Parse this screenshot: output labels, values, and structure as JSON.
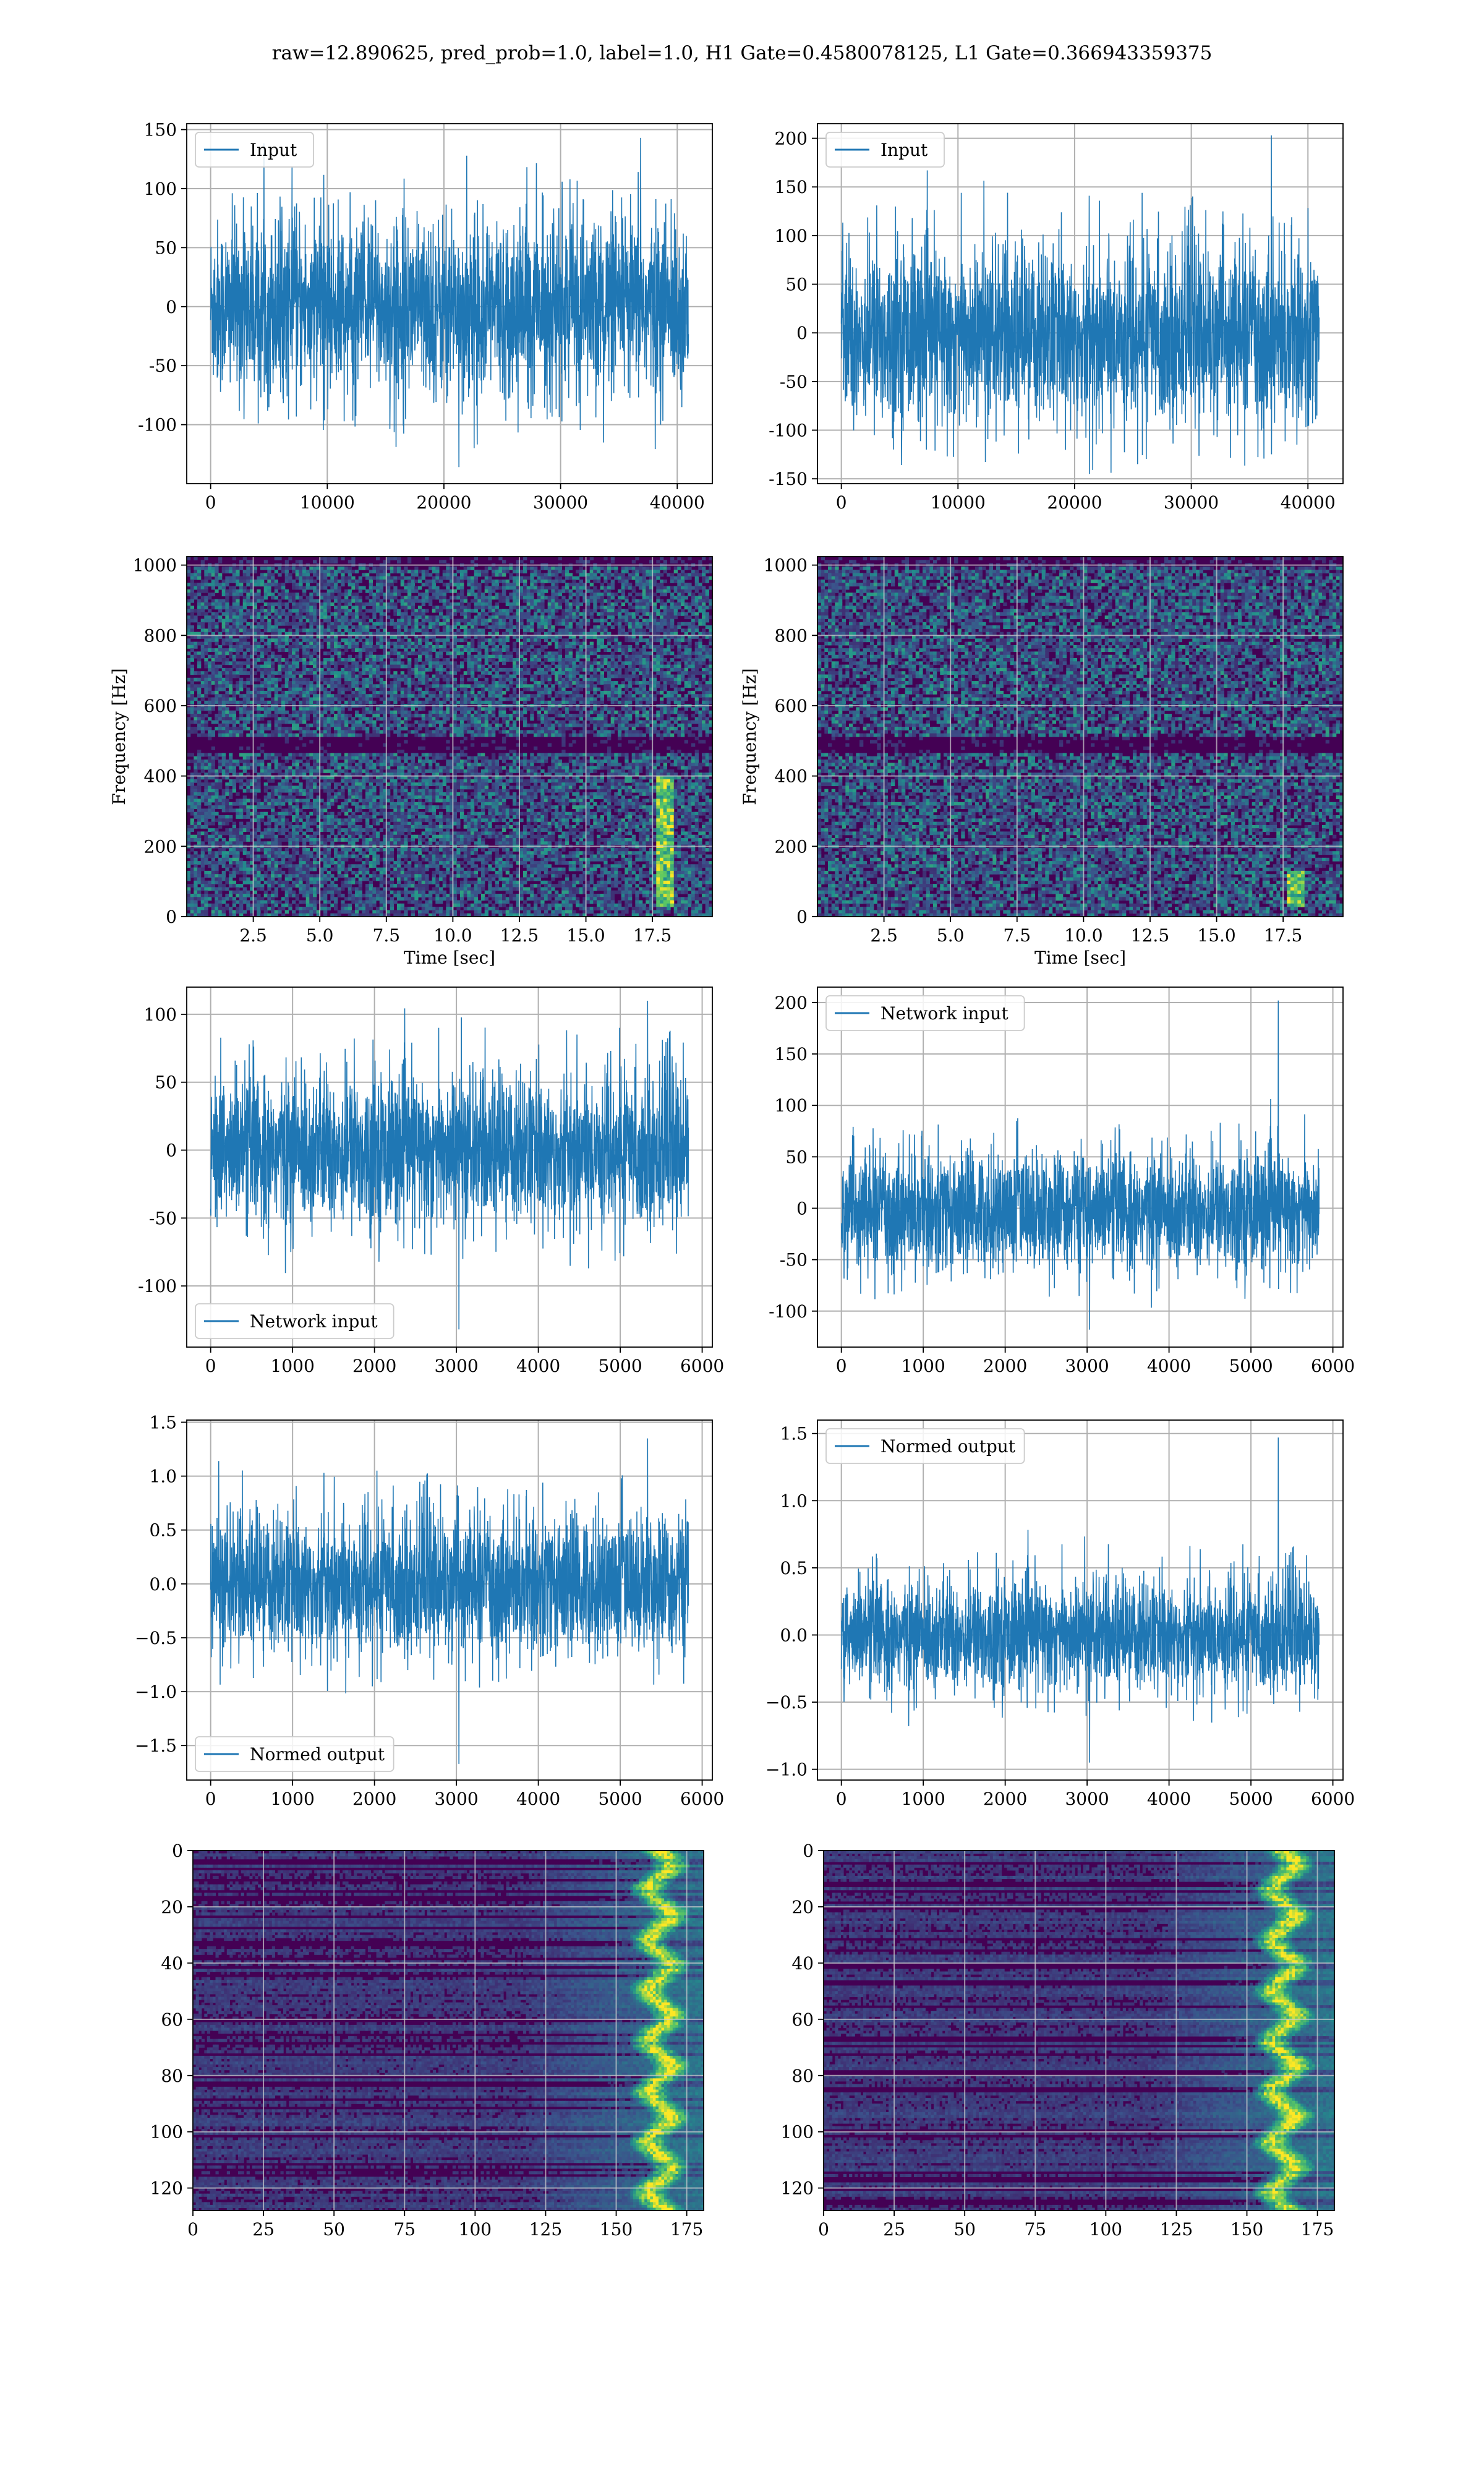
{
  "suptitle": "raw=12.890625, pred_prob=1.0, label=1.0, H1 Gate=0.4580078125, L1 Gate=0.366943359375",
  "colors": {
    "series": "#1f77b4",
    "grid": "#b0b0b0",
    "viridis_low": "#440154",
    "viridis_high": "#fde725"
  },
  "chart_data": [
    {
      "id": "h1-input",
      "type": "line",
      "row": 0,
      "col": 0,
      "legend": [
        "Input"
      ],
      "legend_loc": "upper left",
      "xlim": [
        -2048,
        43008
      ],
      "ylim": [
        -150,
        155
      ],
      "xticks": [
        0,
        10000,
        20000,
        30000,
        40000
      ],
      "yticks": [
        -100,
        -50,
        0,
        50,
        100,
        150
      ],
      "series": [
        {
          "name": "Input",
          "n_samples": 40960,
          "envelope": [
            -80,
            80
          ],
          "min": -136,
          "max": 143
        }
      ],
      "grid": true
    },
    {
      "id": "l1-input",
      "type": "line",
      "row": 0,
      "col": 1,
      "legend": [
        "Input"
      ],
      "legend_loc": "upper left",
      "xlim": [
        -2048,
        43008
      ],
      "ylim": [
        -155,
        215
      ],
      "xticks": [
        0,
        10000,
        20000,
        30000,
        40000
      ],
      "yticks": [
        -150,
        -100,
        -50,
        0,
        50,
        100,
        150,
        200
      ],
      "series": [
        {
          "name": "Input",
          "n_samples": 40960,
          "envelope": [
            -100,
            95
          ],
          "min": -145,
          "max": 203
        }
      ],
      "grid": true
    },
    {
      "id": "h1-spectrogram",
      "type": "heatmap",
      "row": 1,
      "col": 0,
      "xlabel": "Time [sec]",
      "ylabel": "Frequency [Hz]",
      "xlim": [
        0,
        19.75
      ],
      "ylim": [
        0,
        1024
      ],
      "xticks": [
        2.5,
        5.0,
        7.5,
        10.0,
        12.5,
        15.0,
        17.5
      ],
      "yticks": [
        0,
        200,
        400,
        600,
        800,
        1000
      ],
      "xtick_labels": [
        "2.5",
        "5.0",
        "7.5",
        "10.0",
        "12.5",
        "15.0",
        "17.5"
      ],
      "grid": true,
      "features": {
        "dark_band_hz": [
          470,
          510
        ],
        "chirp_time_sec": 18.0,
        "chirp_freq_range_hz": [
          30,
          400
        ]
      }
    },
    {
      "id": "l1-spectrogram",
      "type": "heatmap",
      "row": 1,
      "col": 1,
      "xlabel": "Time [sec]",
      "ylabel": "Frequency [Hz]",
      "xlim": [
        0,
        19.75
      ],
      "ylim": [
        0,
        1024
      ],
      "xticks": [
        2.5,
        5.0,
        7.5,
        10.0,
        12.5,
        15.0,
        17.5
      ],
      "yticks": [
        0,
        200,
        400,
        600,
        800,
        1000
      ],
      "xtick_labels": [
        "2.5",
        "5.0",
        "7.5",
        "10.0",
        "12.5",
        "15.0",
        "17.5"
      ],
      "grid": true,
      "features": {
        "dark_band_hz": [
          470,
          510
        ],
        "chirp_time_sec": 18.0,
        "chirp_freq_range_hz": [
          30,
          130
        ]
      }
    },
    {
      "id": "h1-network-input",
      "type": "line",
      "row": 2,
      "col": 0,
      "legend": [
        "Network input"
      ],
      "legend_loc": "lower left",
      "xlim": [
        -292,
        6124
      ],
      "ylim": [
        -145,
        120
      ],
      "xticks": [
        0,
        1000,
        2000,
        3000,
        4000,
        5000,
        6000
      ],
      "yticks": [
        -100,
        -50,
        0,
        50,
        100
      ],
      "series": [
        {
          "name": "Network input",
          "n_samples": 5832,
          "envelope": [
            -60,
            60
          ],
          "min": -132,
          "max": 110
        }
      ],
      "grid": true
    },
    {
      "id": "l1-network-input",
      "type": "line",
      "row": 2,
      "col": 1,
      "legend": [
        "Network input"
      ],
      "legend_loc": "upper left",
      "xlim": [
        -292,
        6124
      ],
      "ylim": [
        -135,
        215
      ],
      "xticks": [
        0,
        1000,
        2000,
        3000,
        4000,
        5000,
        6000
      ],
      "yticks": [
        -100,
        -50,
        0,
        50,
        100,
        150,
        200
      ],
      "series": [
        {
          "name": "Network input",
          "n_samples": 5832,
          "envelope": [
            -65,
            60
          ],
          "min": -118,
          "max": 202
        }
      ],
      "grid": true
    },
    {
      "id": "h1-normed-output",
      "type": "line",
      "row": 3,
      "col": 0,
      "legend": [
        "Normed output"
      ],
      "legend_loc": "lower left",
      "xlim": [
        -292,
        6124
      ],
      "ylim": [
        -1.82,
        1.52
      ],
      "xticks": [
        0,
        1000,
        2000,
        3000,
        4000,
        5000,
        6000
      ],
      "yticks": [
        -1.5,
        -1.0,
        -0.5,
        0.0,
        0.5,
        1.0,
        1.5
      ],
      "ytick_labels": [
        "−1.5",
        "−1.0",
        "−0.5",
        "0.0",
        "0.5",
        "1.0",
        "1.5"
      ],
      "series": [
        {
          "name": "Normed output",
          "n_samples": 5832,
          "envelope": [
            -0.7,
            0.7
          ],
          "min": -1.67,
          "max": 1.35
        }
      ],
      "grid": true
    },
    {
      "id": "l1-normed-output",
      "type": "line",
      "row": 3,
      "col": 1,
      "legend": [
        "Normed output"
      ],
      "legend_loc": "upper left",
      "xlim": [
        -292,
        6124
      ],
      "ylim": [
        -1.08,
        1.6
      ],
      "xticks": [
        0,
        1000,
        2000,
        3000,
        4000,
        5000,
        6000
      ],
      "yticks": [
        -1.0,
        -0.5,
        0.0,
        0.5,
        1.0,
        1.5
      ],
      "ytick_labels": [
        "−1.0",
        "−0.5",
        "0.0",
        "0.5",
        "1.0",
        "1.5"
      ],
      "series": [
        {
          "name": "Normed output",
          "n_samples": 5832,
          "envelope": [
            -0.45,
            0.45
          ],
          "min": -0.95,
          "max": 1.47
        }
      ],
      "grid": true
    },
    {
      "id": "h1-feature-map",
      "type": "heatmap",
      "row": 4,
      "col": 0,
      "xlim": [
        0,
        181
      ],
      "ylim": [
        128,
        0
      ],
      "y_inverted": true,
      "xticks": [
        0,
        25,
        50,
        75,
        100,
        125,
        150,
        175
      ],
      "yticks": [
        0,
        20,
        40,
        60,
        80,
        100,
        120
      ],
      "grid": true,
      "features": {
        "bright_columns": [
          155,
          175
        ],
        "dark_rows": true
      }
    },
    {
      "id": "l1-feature-map",
      "type": "heatmap",
      "row": 4,
      "col": 1,
      "xlim": [
        0,
        181
      ],
      "ylim": [
        128,
        0
      ],
      "y_inverted": true,
      "xticks": [
        0,
        25,
        50,
        75,
        100,
        125,
        150,
        175
      ],
      "yticks": [
        0,
        20,
        40,
        60,
        80,
        100,
        120
      ],
      "grid": true,
      "features": {
        "bright_columns": [
          150,
          175
        ],
        "dark_rows": true
      }
    }
  ]
}
